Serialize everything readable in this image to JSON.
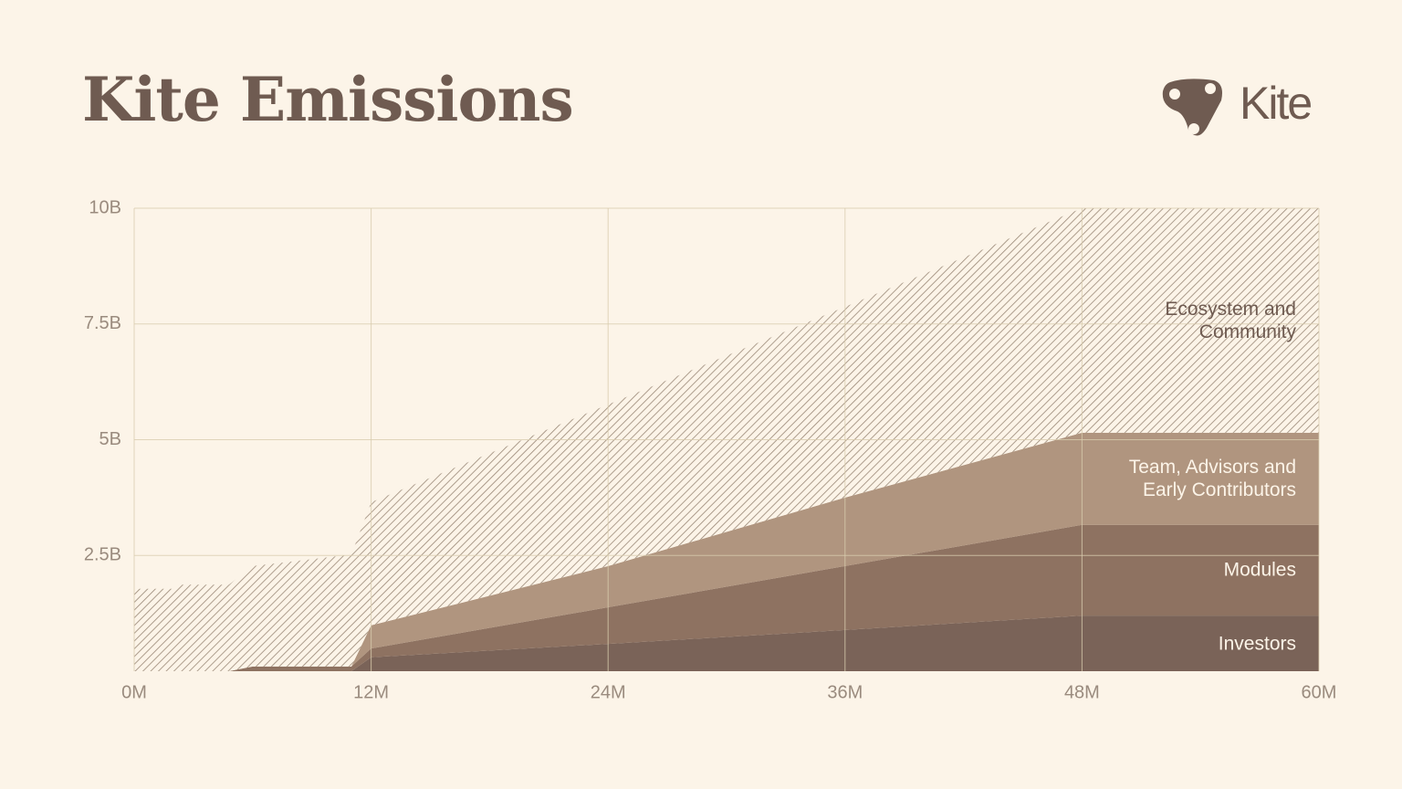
{
  "brand": "Kite",
  "chart_data": {
    "type": "area",
    "stacked": true,
    "title": "Kite Emissions",
    "x": [
      0,
      2,
      2.2,
      4.8,
      6,
      11,
      12,
      24,
      36,
      48,
      60
    ],
    "series": [
      {
        "name": "Investors",
        "color": "#7a6358",
        "values": [
          0,
          0,
          0,
          0,
          0,
          0,
          0.3,
          0.59,
          0.89,
          1.2,
          1.2
        ]
      },
      {
        "name": "Modules",
        "color": "#8e7261",
        "values": [
          0,
          0,
          0,
          0,
          0.1,
          0.1,
          0.19,
          0.79,
          1.38,
          1.96,
          1.96
        ]
      },
      {
        "name": "Team, Advisors and Early Contributors",
        "color": "#b0957f",
        "values": [
          0,
          0,
          0,
          0,
          0,
          0,
          0.5,
          0.89,
          1.48,
          1.99,
          1.99
        ]
      },
      {
        "name": "Ecosystem and Community",
        "color": "#9a8876",
        "hatch": true,
        "values": [
          1.78,
          1.78,
          1.87,
          1.87,
          2.17,
          2.42,
          2.66,
          3.49,
          4.12,
          4.85,
          4.85
        ]
      }
    ],
    "xlim": [
      0,
      60
    ],
    "xticks": [
      {
        "value": 0,
        "label": "0M"
      },
      {
        "value": 12,
        "label": "12M"
      },
      {
        "value": 24,
        "label": "24M"
      },
      {
        "value": 36,
        "label": "36M"
      },
      {
        "value": 48,
        "label": "48M"
      },
      {
        "value": 60,
        "label": "60M"
      }
    ],
    "ylim": [
      0,
      10
    ],
    "yticks": [
      {
        "value": 2.5,
        "label": "2.5B"
      },
      {
        "value": 5,
        "label": "5B"
      },
      {
        "value": 7.5,
        "label": "7.5B"
      },
      {
        "value": 10,
        "label": "10B"
      }
    ],
    "grid": true
  }
}
